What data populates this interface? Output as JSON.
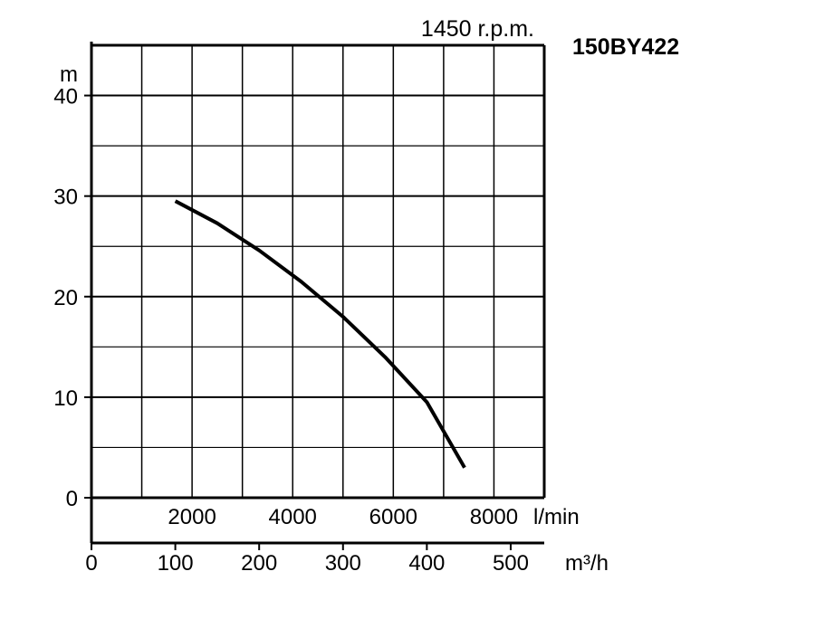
{
  "model": "150BY422",
  "speed": "1450 r.p.m.",
  "colors": {
    "line": "#000000",
    "grid": "#000000",
    "background": "#ffffff"
  },
  "chart_data": {
    "type": "line",
    "title": "",
    "ylabel": "m",
    "y_unit": "m",
    "ylim": [
      0,
      45
    ],
    "y_ticks": [
      0,
      10,
      20,
      30,
      40
    ],
    "x_primary": {
      "unit": "m³/h",
      "lim": [
        0,
        540
      ],
      "ticks": [
        0,
        100,
        200,
        300,
        400,
        500
      ]
    },
    "x_secondary": {
      "unit": "l/min",
      "ticks": [
        2000,
        4000,
        6000,
        8000
      ]
    },
    "grid": true,
    "series": [
      {
        "x": [
          100,
          150,
          200,
          250,
          300,
          350,
          400,
          445
        ],
        "y": [
          29.5,
          27.3,
          24.6,
          21.5,
          18.0,
          14.0,
          9.5,
          3.0
        ]
      }
    ]
  }
}
